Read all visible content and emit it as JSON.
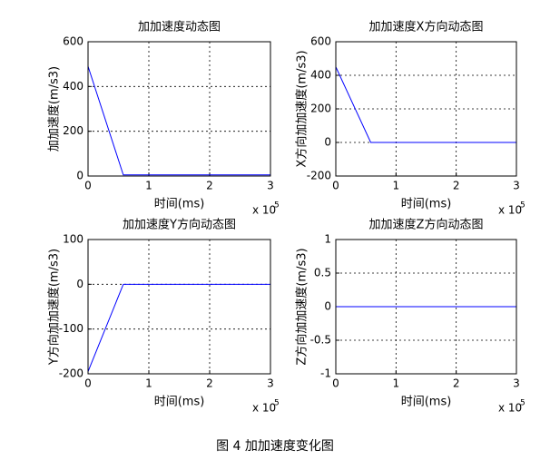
{
  "caption": "图 4  加加速度变化图",
  "chart_data": [
    {
      "type": "line",
      "title": "加加速度动态图",
      "xlabel": "时间(ms)",
      "ylabel": "加加速度(m/s3)",
      "x_multiplier": "x 10",
      "x_multiplier_exponent": "5",
      "x": [
        0,
        0.58,
        3
      ],
      "values": [
        490,
        5,
        5
      ],
      "color": "#0000ff",
      "xlim": [
        0,
        3
      ],
      "xticks": [
        0,
        1,
        2,
        3
      ],
      "ylim": [
        0,
        600
      ],
      "yticks": [
        0,
        200,
        400,
        600
      ],
      "grid": true
    },
    {
      "type": "line",
      "title": "加加速度X方向动态图",
      "xlabel": "时间(ms)",
      "ylabel": "X方向加加速度(m/s3)",
      "x_multiplier": "x 10",
      "x_multiplier_exponent": "5",
      "x": [
        0,
        0.58,
        3
      ],
      "values": [
        450,
        0,
        0
      ],
      "color": "#0000ff",
      "xlim": [
        0,
        3
      ],
      "xticks": [
        0,
        1,
        2,
        3
      ],
      "ylim": [
        -200,
        600
      ],
      "yticks": [
        -200,
        0,
        200,
        400,
        600
      ],
      "grid": true
    },
    {
      "type": "line",
      "title": "加加速度Y方向动态图",
      "xlabel": "时间(ms)",
      "ylabel": "Y方向加加速度(m/s3)",
      "x_multiplier": "x 10",
      "x_multiplier_exponent": "5",
      "x": [
        0,
        0.58,
        3
      ],
      "values": [
        -195,
        0,
        0
      ],
      "color": "#0000ff",
      "xlim": [
        0,
        3
      ],
      "xticks": [
        0,
        1,
        2,
        3
      ],
      "ylim": [
        -200,
        100
      ],
      "yticks": [
        -200,
        -100,
        0,
        100
      ],
      "grid": true
    },
    {
      "type": "line",
      "title": "加加速度Z方向动态图",
      "xlabel": "时间(ms)",
      "ylabel": "Z方向加加速度(m/s3)",
      "x_multiplier": "x 10",
      "x_multiplier_exponent": "5",
      "x": [
        0,
        3
      ],
      "values": [
        0,
        0
      ],
      "color": "#0000ff",
      "xlim": [
        0,
        3
      ],
      "xticks": [
        0,
        1,
        2,
        3
      ],
      "ylim": [
        -1,
        1
      ],
      "yticks": [
        -1,
        -0.5,
        0,
        0.5,
        1
      ],
      "grid": true
    }
  ]
}
